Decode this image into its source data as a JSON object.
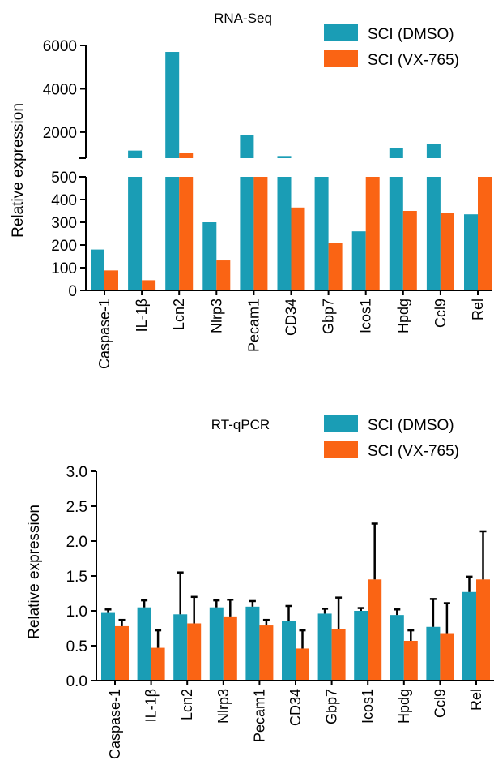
{
  "colors": {
    "dmso": "#1a9db5",
    "vx765": "#fa6414",
    "axis": "#000000",
    "error_bar": "#000000"
  },
  "chart_data": [
    {
      "type": "bar",
      "title": "RNA-Seq",
      "ylabel": "Relative expression",
      "broken_axis": true,
      "lower_ylim": [
        0,
        500
      ],
      "lower_ticks": [
        "0",
        "100",
        "200",
        "300",
        "400",
        "500"
      ],
      "upper_ylim": [
        0,
        6000
      ],
      "upper_ticks": [
        "2000",
        "4000",
        "6000"
      ],
      "categories": [
        "Caspase-1",
        "IL-1β",
        "Lcn2",
        "Nlrp3",
        "Pecam1",
        "CD34",
        "Gbp7",
        "Icos1",
        "Hpdg",
        "Ccl9",
        "Rel"
      ],
      "series": [
        {
          "name": "SCI (DMSO)",
          "values": [
            180,
            1150,
            5700,
            300,
            1850,
            900,
            600,
            260,
            1250,
            1450,
            335
          ]
        },
        {
          "name": "SCI (VX-765)",
          "values": [
            88,
            45,
            1050,
            132,
            500,
            365,
            210,
            500,
            350,
            342,
            500
          ]
        }
      ],
      "legend": "top-right"
    },
    {
      "type": "bar",
      "title": "RT-qPCR",
      "ylabel": "Relative expression",
      "ylim": [
        0,
        3.0
      ],
      "yticks": [
        "0.0",
        "0.5",
        "1.0",
        "1.5",
        "2.0",
        "2.5",
        "3.0"
      ],
      "categories": [
        "Caspase-1",
        "IL-1β",
        "Lcn2",
        "Nlrp3",
        "Pecam1",
        "CD34",
        "Gbp7",
        "Icos1",
        "Hpdg",
        "Ccl9",
        "Rel"
      ],
      "series": [
        {
          "name": "SCI (DMSO)",
          "values": [
            0.97,
            1.05,
            0.95,
            1.05,
            1.06,
            0.85,
            0.96,
            1.0,
            0.94,
            0.77,
            1.27
          ],
          "errors": [
            0.05,
            0.1,
            0.6,
            0.1,
            0.08,
            0.22,
            0.07,
            0.04,
            0.08,
            0.4,
            0.22
          ]
        },
        {
          "name": "SCI (VX-765)",
          "values": [
            0.78,
            0.47,
            0.82,
            0.92,
            0.79,
            0.46,
            0.74,
            1.45,
            0.57,
            0.68,
            1.45
          ],
          "errors": [
            0.09,
            0.25,
            0.38,
            0.24,
            0.08,
            0.26,
            0.45,
            0.8,
            0.15,
            0.43,
            0.69
          ]
        }
      ],
      "legend": "top-right"
    }
  ]
}
